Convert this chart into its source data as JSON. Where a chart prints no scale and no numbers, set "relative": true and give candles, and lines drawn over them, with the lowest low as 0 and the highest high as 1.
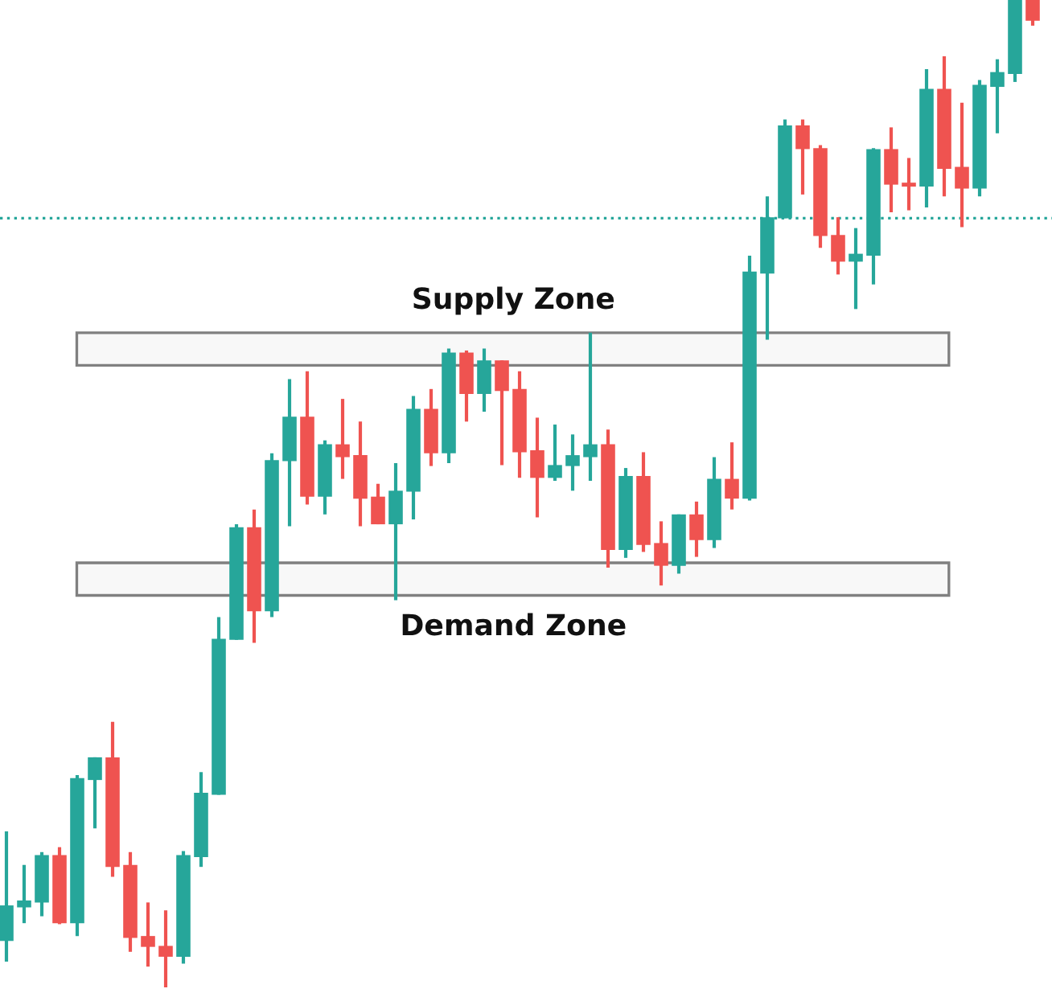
{
  "chart_data": {
    "type": "candlestick",
    "relative": true,
    "categories": [
      null,
      null,
      null,
      null,
      null,
      null,
      null,
      null,
      null,
      null,
      null,
      null,
      null,
      null,
      null,
      null,
      null,
      null,
      null,
      null,
      null,
      null,
      null,
      null,
      null,
      null,
      null,
      null,
      null,
      null,
      null,
      null,
      null,
      null,
      null,
      null,
      null,
      null,
      null,
      null,
      null,
      null,
      null,
      null,
      null,
      null,
      null,
      null,
      null,
      null,
      null,
      null,
      null,
      null,
      null,
      null,
      null,
      null,
      null
    ],
    "ohlc": [
      [
        0.047,
        0.158,
        0.026,
        0.083
      ],
      [
        0.081,
        0.124,
        0.065,
        0.088
      ],
      [
        0.086,
        0.137,
        0.072,
        0.134
      ],
      [
        0.134,
        0.142,
        0.064,
        0.065
      ],
      [
        0.065,
        0.215,
        0.052,
        0.212
      ],
      [
        0.21,
        0.233,
        0.161,
        0.233
      ],
      [
        0.233,
        0.269,
        0.112,
        0.122
      ],
      [
        0.124,
        0.137,
        0.036,
        0.05
      ],
      [
        0.052,
        0.086,
        0.021,
        0.041
      ],
      [
        0.042,
        0.078,
        0,
        0.031
      ],
      [
        0.031,
        0.138,
        0.024,
        0.134
      ],
      [
        0.132,
        0.218,
        0.122,
        0.197
      ],
      [
        0.195,
        0.375,
        0.195,
        0.353
      ],
      [
        0.352,
        0.469,
        0.352,
        0.466
      ],
      [
        0.466,
        0.484,
        0.349,
        0.381
      ],
      [
        0.381,
        0.541,
        0.375,
        0.534
      ],
      [
        0.533,
        0.616,
        0.467,
        0.578
      ],
      [
        0.578,
        0.624,
        0.489,
        0.497
      ],
      [
        0.497,
        0.554,
        0.479,
        0.55
      ],
      [
        0.55,
        0.596,
        0.515,
        0.537
      ],
      [
        0.539,
        0.573,
        0.467,
        0.495
      ],
      [
        0.497,
        0.51,
        0.469,
        0.469
      ],
      [
        0.469,
        0.531,
        0.392,
        0.503
      ],
      [
        0.502,
        0.599,
        0.474,
        0.586
      ],
      [
        0.586,
        0.606,
        0.528,
        0.541
      ],
      [
        0.541,
        0.647,
        0.531,
        0.643
      ],
      [
        0.643,
        0.645,
        0.573,
        0.601
      ],
      [
        0.601,
        0.647,
        0.583,
        0.635
      ],
      [
        0.635,
        0.635,
        0.529,
        0.604
      ],
      [
        0.606,
        0.624,
        0.516,
        0.542
      ],
      [
        0.544,
        0.577,
        0.476,
        0.516
      ],
      [
        0.516,
        0.57,
        0.513,
        0.529
      ],
      [
        0.528,
        0.56,
        0.503,
        0.539
      ],
      [
        0.537,
        0.663,
        0.513,
        0.55
      ],
      [
        0.55,
        0.565,
        0.425,
        0.443
      ],
      [
        0.443,
        0.526,
        0.435,
        0.518
      ],
      [
        0.518,
        0.542,
        0.441,
        0.448
      ],
      [
        0.45,
        0.472,
        0.407,
        0.427
      ],
      [
        0.427,
        0.479,
        0.419,
        0.479
      ],
      [
        0.479,
        0.492,
        0.436,
        0.453
      ],
      [
        0.453,
        0.537,
        0.445,
        0.515
      ],
      [
        0.515,
        0.552,
        0.484,
        0.495
      ],
      [
        0.495,
        0.741,
        0.493,
        0.725
      ],
      [
        0.723,
        0.801,
        0.656,
        0.78
      ],
      [
        0.779,
        0.879,
        0.779,
        0.873
      ],
      [
        0.873,
        0.879,
        0.803,
        0.849
      ],
      [
        0.85,
        0.853,
        0.749,
        0.761
      ],
      [
        0.762,
        0.78,
        0.722,
        0.735
      ],
      [
        0.735,
        0.769,
        0.687,
        0.743
      ],
      [
        0.741,
        0.85,
        0.712,
        0.849
      ],
      [
        0.849,
        0.871,
        0.785,
        0.813
      ],
      [
        0.814,
        0.84,
        0.787,
        0.811
      ],
      [
        0.811,
        0.93,
        0.79,
        0.91
      ],
      [
        0.91,
        0.943,
        0.801,
        0.829
      ],
      [
        0.831,
        0.896,
        0.77,
        0.809
      ],
      [
        0.809,
        0.919,
        0.801,
        0.914
      ],
      [
        0.912,
        0.94,
        0.865,
        0.927
      ],
      [
        0.925,
        1,
        0.917,
        1
      ],
      [
        1,
        1,
        0.974,
        0.979
      ]
    ],
    "colors": [
      "#26a69a",
      "#26a69a",
      "#26a69a",
      "#ef5350",
      "#26a69a",
      "#26a69a",
      "#ef5350",
      "#ef5350",
      "#ef5350",
      "#ef5350",
      "#26a69a",
      "#26a69a",
      "#26a69a",
      "#26a69a",
      "#ef5350",
      "#26a69a",
      "#26a69a",
      "#ef5350",
      "#26a69a",
      "#ef5350",
      "#ef5350",
      "#ef5350",
      "#26a69a",
      "#26a69a",
      "#ef5350",
      "#26a69a",
      "#ef5350",
      "#26a69a",
      "#ef5350",
      "#ef5350",
      "#ef5350",
      "#26a69a",
      "#26a69a",
      "#26a69a",
      "#ef5350",
      "#26a69a",
      "#ef5350",
      "#ef5350",
      "#26a69a",
      "#ef5350",
      "#26a69a",
      "#ef5350",
      "#26a69a",
      "#26a69a",
      "#26a69a",
      "#ef5350",
      "#ef5350",
      "#ef5350",
      "#26a69a",
      "#26a69a",
      "#ef5350",
      "#ef5350",
      "#26a69a",
      "#ef5350",
      "#ef5350",
      "#26a69a",
      "#26a69a",
      "#26a69a",
      "#ef5350"
    ],
    "ref_lines": [
      {
        "axis": "y",
        "value": 0.779,
        "color": "#26a69a",
        "line_style": "dotted"
      }
    ],
    "bands": [
      {
        "axis": "y",
        "from": 0.63,
        "to": 0.663,
        "label": "Supply Zone",
        "color": "#808080"
      },
      {
        "axis": "y",
        "from": 0.397,
        "to": 0.43,
        "label": "Demand Zone",
        "color": "#808080"
      }
    ]
  }
}
